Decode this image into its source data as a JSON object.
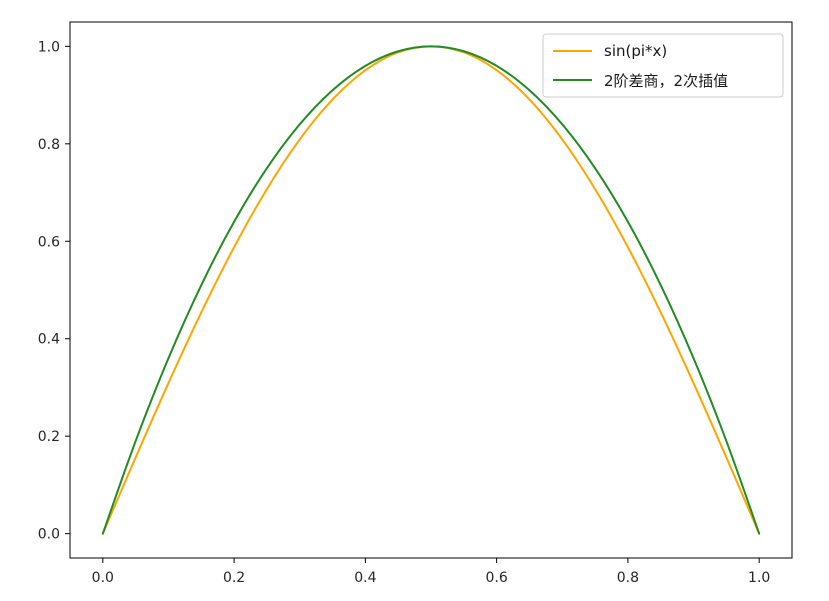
{
  "chart_data": {
    "type": "line",
    "title": "",
    "xlabel": "",
    "ylabel": "",
    "xlim": [
      -0.05,
      1.05
    ],
    "ylim": [
      -0.05,
      1.05
    ],
    "x_ticks": [
      0.0,
      0.2,
      0.4,
      0.6,
      0.8,
      1.0
    ],
    "x_tick_labels": [
      "0.0",
      "0.2",
      "0.4",
      "0.6",
      "0.8",
      "1.0"
    ],
    "y_ticks": [
      0.0,
      0.2,
      0.4,
      0.6,
      0.8,
      1.0
    ],
    "y_tick_labels": [
      "0.0",
      "0.2",
      "0.4",
      "0.6",
      "0.8",
      "1.0"
    ],
    "grid": false,
    "legend_position": "upper-right",
    "series": [
      {
        "name": "sin(pi*x)",
        "color": "#ffa500",
        "x": [
          0.0,
          0.05,
          0.1,
          0.15,
          0.2,
          0.25,
          0.3,
          0.35,
          0.4,
          0.45,
          0.5,
          0.55,
          0.6,
          0.65,
          0.7,
          0.75,
          0.8,
          0.85,
          0.9,
          0.95,
          1.0
        ],
        "y": [
          0.0,
          0.1564,
          0.309,
          0.454,
          0.5878,
          0.7071,
          0.809,
          0.891,
          0.9511,
          0.9877,
          1.0,
          0.9877,
          0.9511,
          0.891,
          0.809,
          0.7071,
          0.5878,
          0.454,
          0.309,
          0.1564,
          0.0
        ]
      },
      {
        "name": "2阶差商，2次插值",
        "color": "#228b22",
        "x": [
          0.0,
          0.05,
          0.1,
          0.15,
          0.2,
          0.25,
          0.3,
          0.35,
          0.4,
          0.45,
          0.5,
          0.55,
          0.6,
          0.65,
          0.7,
          0.75,
          0.8,
          0.85,
          0.9,
          0.95,
          1.0
        ],
        "y": [
          0.0,
          0.19,
          0.36,
          0.51,
          0.64,
          0.75,
          0.84,
          0.91,
          0.96,
          0.99,
          1.0,
          0.99,
          0.96,
          0.91,
          0.84,
          0.75,
          0.64,
          0.51,
          0.36,
          0.19,
          0.0
        ]
      }
    ]
  }
}
